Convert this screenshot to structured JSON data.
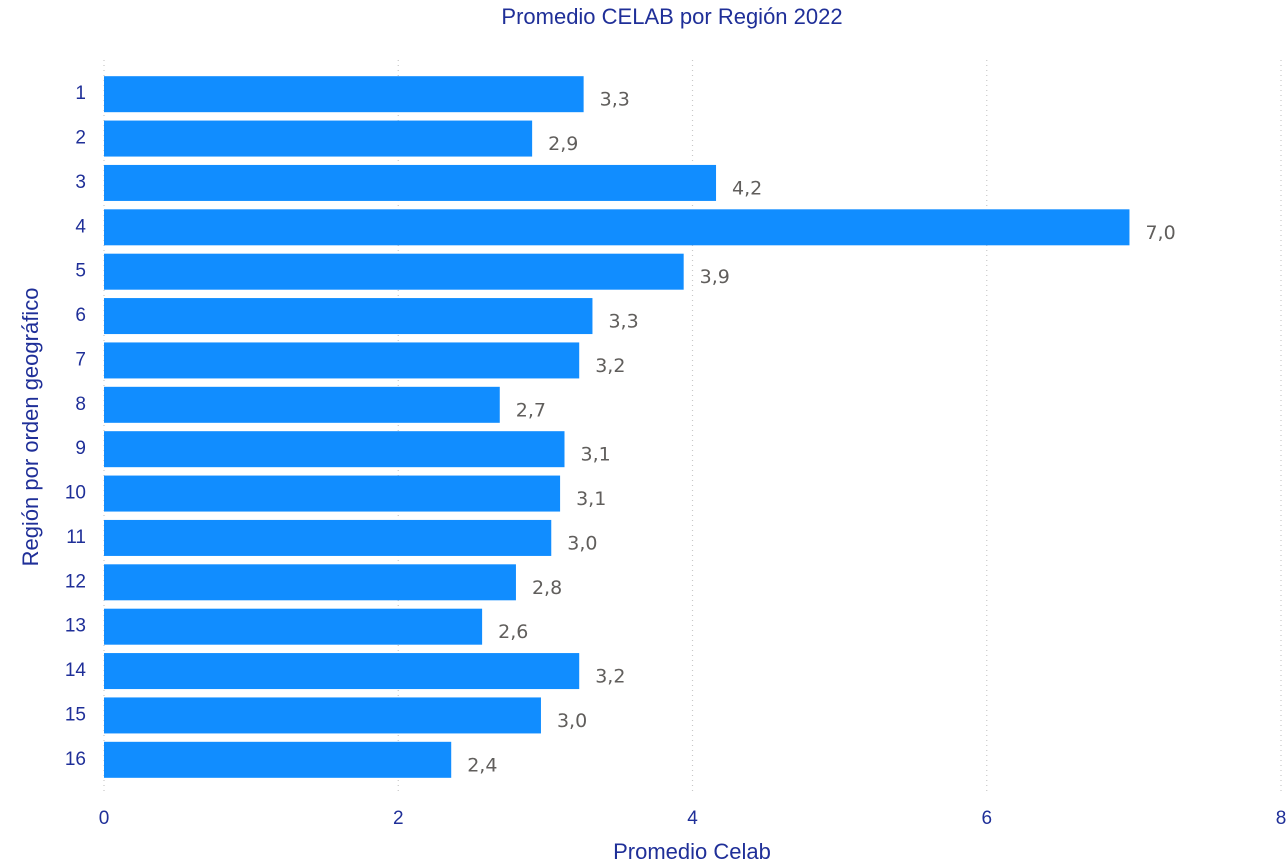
{
  "chart_data": {
    "type": "bar",
    "orientation": "horizontal",
    "title": "Promedio CELAB por Región 2022",
    "x_label": "Promedio Celab",
    "y_label": "Región por orden geográfico",
    "categories": [
      "1",
      "2",
      "3",
      "4",
      "5",
      "6",
      "7",
      "8",
      "9",
      "10",
      "11",
      "12",
      "13",
      "14",
      "15",
      "16"
    ],
    "values": [
      3.26,
      2.91,
      4.16,
      6.97,
      3.94,
      3.32,
      3.23,
      2.69,
      3.13,
      3.1,
      3.04,
      2.8,
      2.57,
      3.23,
      2.97,
      2.36
    ],
    "value_labels": [
      "3,3",
      "2,9",
      "4,2",
      "7,0",
      "3,9",
      "3,3",
      "3,2",
      "2,7",
      "3,1",
      "3,1",
      "3,0",
      "2,8",
      "2,6",
      "3,2",
      "3,0",
      "2,4"
    ],
    "color": "#118dff",
    "xlim": [
      0,
      8
    ],
    "xticks": [
      0,
      2,
      4,
      6,
      8
    ],
    "grid": true
  }
}
